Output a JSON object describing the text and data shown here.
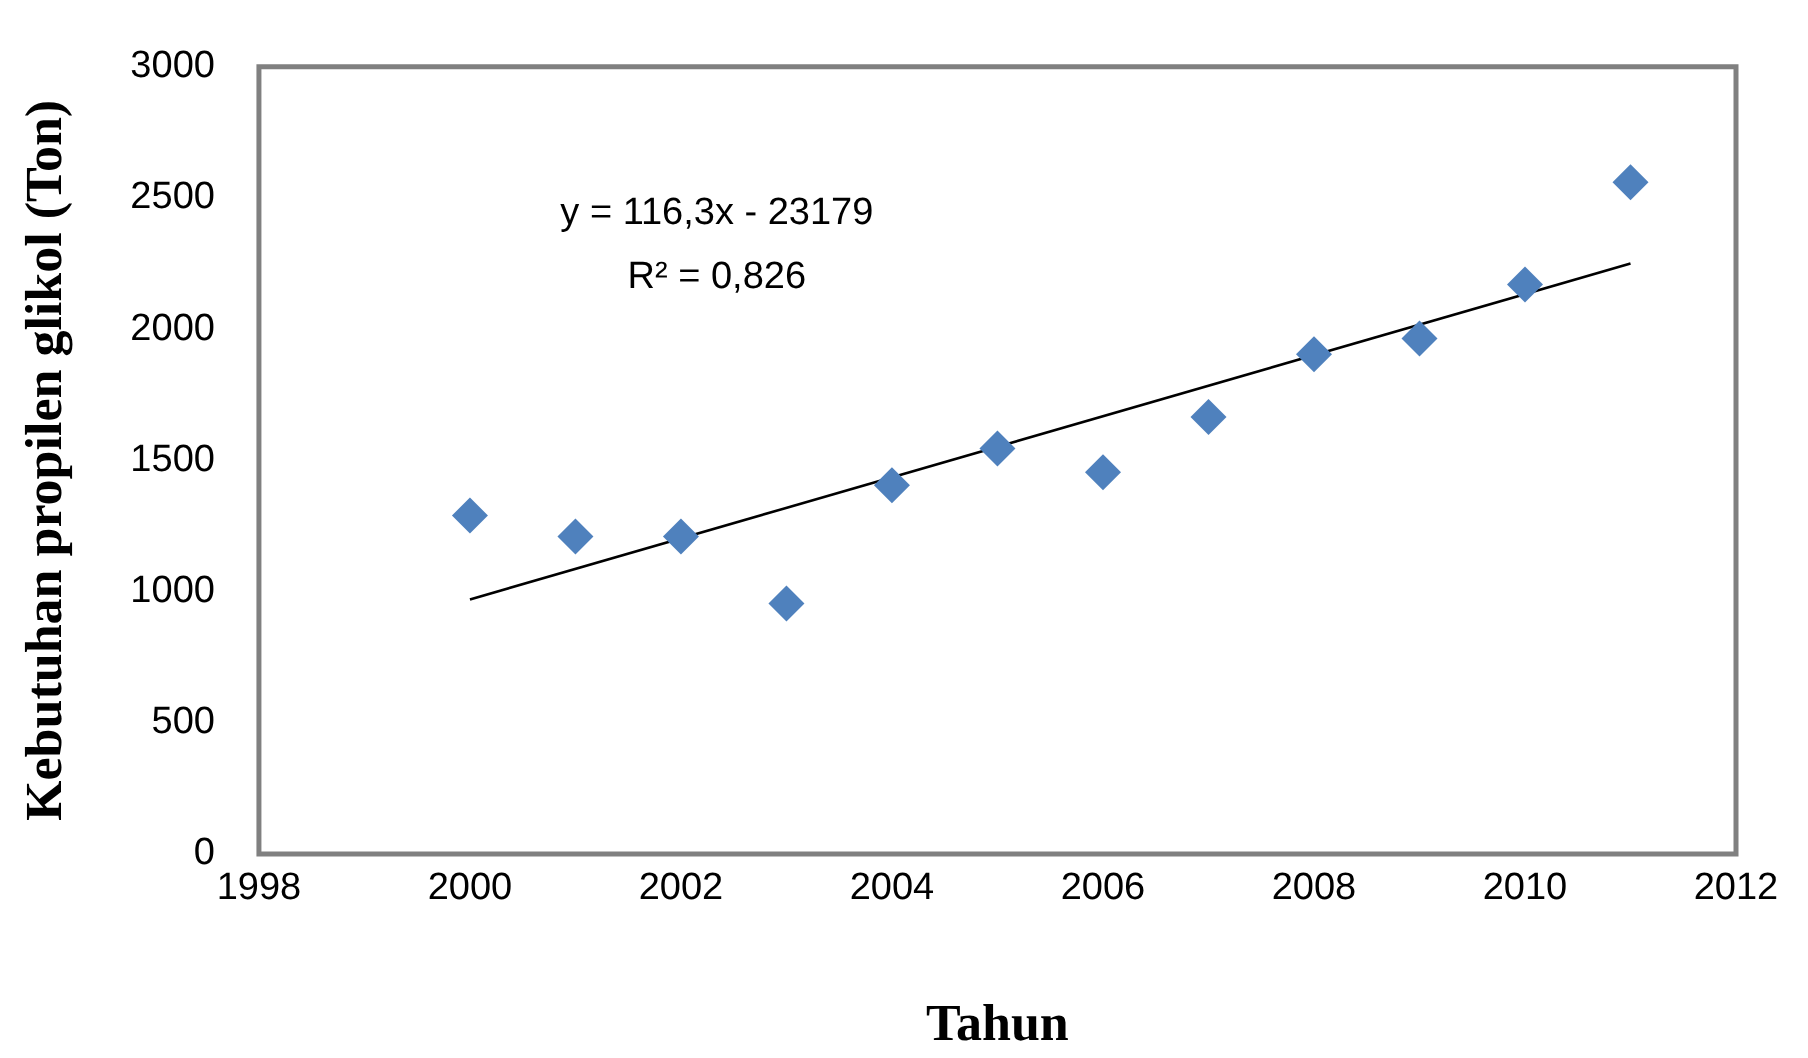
{
  "chart_data": {
    "type": "scatter",
    "xlabel": "Tahun",
    "ylabel": "Kebutuhan propilen glikol (Ton)",
    "x": [
      2000,
      2001,
      2002,
      2003,
      2004,
      2005,
      2006,
      2007,
      2008,
      2009,
      2010,
      2011
    ],
    "series": [
      {
        "color": "#4f81bd",
        "marker": "diamond",
        "values": [
          1290,
          1210,
          1210,
          955,
          1405,
          1545,
          1455,
          1665,
          1905,
          1965,
          2170,
          2560
        ]
      },
      {
        "type": "line",
        "color": "#000000",
        "x": [
          2000,
          2011
        ],
        "values": [
          970,
          2250
        ],
        "marker": "none"
      }
    ],
    "annotations": [
      "y = 116,3x - 23179",
      "R² = 0,826"
    ],
    "xlim": [
      1998,
      2012
    ],
    "xticks": [
      1998,
      2000,
      2002,
      2004,
      2006,
      2008,
      2010,
      2012
    ],
    "ylim": [
      0,
      3000
    ],
    "yticks": [
      0,
      500,
      1000,
      1500,
      2000,
      2500,
      3000
    ],
    "grid": false,
    "legend": false
  }
}
